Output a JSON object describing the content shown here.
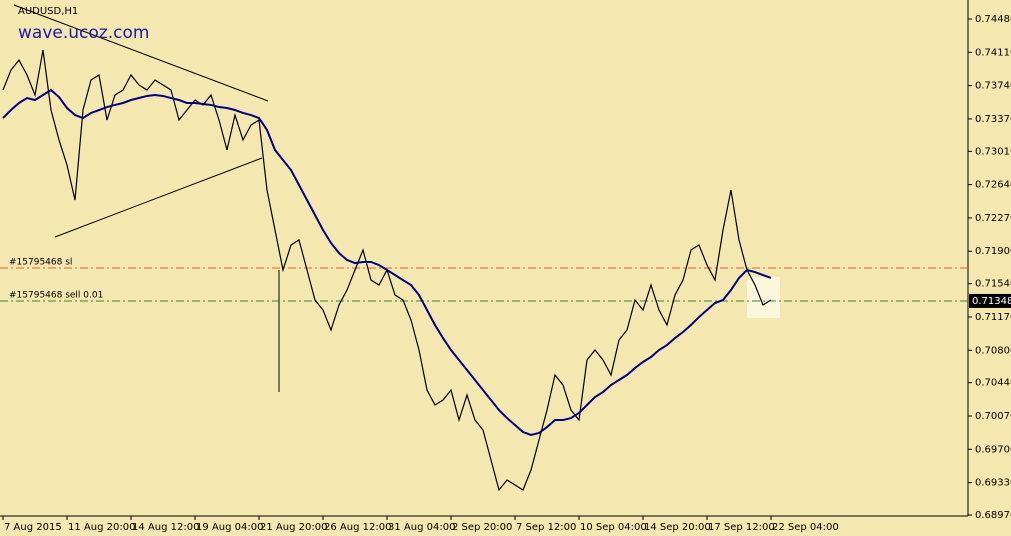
{
  "chart_data": {
    "type": "line",
    "title": "AUDUSD,H1",
    "watermark": "wave.ucoz.com",
    "background": "#f5e7b0",
    "categories": [
      "7 Aug 2015",
      null,
      null,
      null,
      null,
      null,
      null,
      null,
      "11 Aug 20:00",
      null,
      null,
      null,
      null,
      null,
      null,
      null,
      "14 Aug 12:00",
      null,
      null,
      null,
      null,
      null,
      null,
      null,
      "19 Aug 04:00",
      null,
      null,
      null,
      null,
      null,
      null,
      null,
      "21 Aug 20:00",
      null,
      null,
      null,
      null,
      null,
      null,
      null,
      "26 Aug 12:00",
      null,
      null,
      null,
      null,
      null,
      null,
      null,
      "31 Aug 04:00",
      null,
      null,
      null,
      null,
      null,
      null,
      null,
      "2 Sep 20:00",
      null,
      null,
      null,
      null,
      null,
      null,
      null,
      "7 Sep 12:00",
      null,
      null,
      null,
      null,
      null,
      null,
      null,
      "10 Sep 04:00",
      null,
      null,
      null,
      null,
      null,
      null,
      null,
      "14 Sep 20:00",
      null,
      null,
      null,
      null,
      null,
      null,
      null,
      "17 Sep 12:00",
      null,
      null,
      null,
      null,
      null,
      null,
      null,
      "22 Sep 04:00"
    ],
    "series": [
      {
        "name": "AUDUSD",
        "color": "#000000",
        "width": 1.2,
        "values": [
          0.73691,
          0.73913,
          0.74024,
          0.73858,
          0.73636,
          0.74136,
          0.73469,
          0.73136,
          0.72858,
          0.72469,
          0.73469,
          0.73802,
          0.73858,
          0.73358,
          0.73636,
          0.73691,
          0.73858,
          0.73747,
          0.73691,
          0.73802,
          0.73747,
          0.73691,
          0.73358,
          0.73469,
          0.7358,
          0.73525,
          0.73636,
          0.73358,
          0.73025,
          0.73413,
          0.73136,
          0.73302,
          0.73358,
          0.7258,
          0.72136,
          0.71692,
          0.71969,
          0.72025,
          0.71692,
          0.71358,
          0.71247,
          0.71025,
          0.71303,
          0.71469,
          0.71692,
          0.71914,
          0.7158,
          0.71525,
          0.71692,
          0.71414,
          0.71358,
          0.71136,
          0.70803,
          0.70358,
          0.70192,
          0.70247,
          0.70358,
          0.70025,
          0.70303,
          0.70025,
          0.69914,
          0.69581,
          0.69248,
          0.69359,
          0.69303,
          0.69248,
          0.6947,
          0.69803,
          0.70136,
          0.70525,
          0.70414,
          0.70136,
          0.70025,
          0.70692,
          0.70803,
          0.70692,
          0.70525,
          0.70914,
          0.71025,
          0.71358,
          0.71247,
          0.71525,
          0.71247,
          0.71081,
          0.71414,
          0.7158,
          0.71914,
          0.71969,
          0.71747,
          0.7158,
          0.72136,
          0.7258,
          0.72025,
          0.71692,
          0.71525,
          0.71303,
          0.71358
        ]
      },
      {
        "name": "MA",
        "color": "#000080",
        "width": 2,
        "values": [
          0.7338,
          0.73469,
          0.73547,
          0.73602,
          0.7358,
          0.73636,
          0.73691,
          0.73613,
          0.73491,
          0.73413,
          0.7338,
          0.73436,
          0.73469,
          0.73502,
          0.73525,
          0.73547,
          0.7358,
          0.73602,
          0.73625,
          0.73636,
          0.73625,
          0.73602,
          0.7358,
          0.73547,
          0.73547,
          0.73536,
          0.73525,
          0.73502,
          0.73491,
          0.73469,
          0.73436,
          0.73413,
          0.7338,
          0.73247,
          0.73025,
          0.72914,
          0.72802,
          0.72636,
          0.72469,
          0.72303,
          0.72136,
          0.71992,
          0.7188,
          0.71803,
          0.71769,
          0.71781,
          0.71781,
          0.71747,
          0.71692,
          0.71636,
          0.7158,
          0.71525,
          0.71414,
          0.71247,
          0.71081,
          0.70936,
          0.70803,
          0.70692,
          0.70581,
          0.7047,
          0.70358,
          0.70247,
          0.70136,
          0.70047,
          0.6997,
          0.69892,
          0.69859,
          0.69881,
          0.69947,
          0.70025,
          0.70025,
          0.70047,
          0.70103,
          0.70192,
          0.70281,
          0.70336,
          0.70414,
          0.7047,
          0.70525,
          0.70603,
          0.7067,
          0.70725,
          0.70803,
          0.70858,
          0.70936,
          0.71003,
          0.71081,
          0.71169,
          0.71247,
          0.71325,
          0.71358,
          0.71469,
          0.71603,
          0.71692,
          0.71669,
          0.71636,
          0.71603
        ]
      }
    ],
    "ylim": [
      0.68959,
      0.74691
    ],
    "yticks": [
      {
        "value": 0.7448,
        "label": "0.74480"
      },
      {
        "value": 0.7411,
        "label": "0.74110"
      },
      {
        "value": 0.7374,
        "label": "0.73740"
      },
      {
        "value": 0.7337,
        "label": "0.73370"
      },
      {
        "value": 0.7301,
        "label": "0.73010"
      },
      {
        "value": 0.7264,
        "label": "0.72640"
      },
      {
        "value": 0.7227,
        "label": "0.72270"
      },
      {
        "value": 0.719,
        "label": "0.71900"
      },
      {
        "value": 0.7154,
        "label": "0.71540"
      },
      {
        "value": 0.7117,
        "label": "0.71170"
      },
      {
        "value": 0.708,
        "label": "0.70800"
      },
      {
        "value": 0.7044,
        "label": "0.70440"
      },
      {
        "value": 0.7007,
        "label": "0.70070"
      },
      {
        "value": 0.697,
        "label": "0.69700"
      },
      {
        "value": 0.6933,
        "label": "0.69330"
      },
      {
        "value": 0.6897,
        "label": "0.68970"
      }
    ],
    "level_lines": [
      {
        "label": "#15795468 sl",
        "value": 0.71714,
        "color": "#e0602a"
      },
      {
        "label": "#15795468 sell 0.01",
        "value": 0.71348,
        "color": "#2e8b2e"
      }
    ],
    "last_price": {
      "value": 0.71348,
      "label": "0.71348"
    }
  }
}
